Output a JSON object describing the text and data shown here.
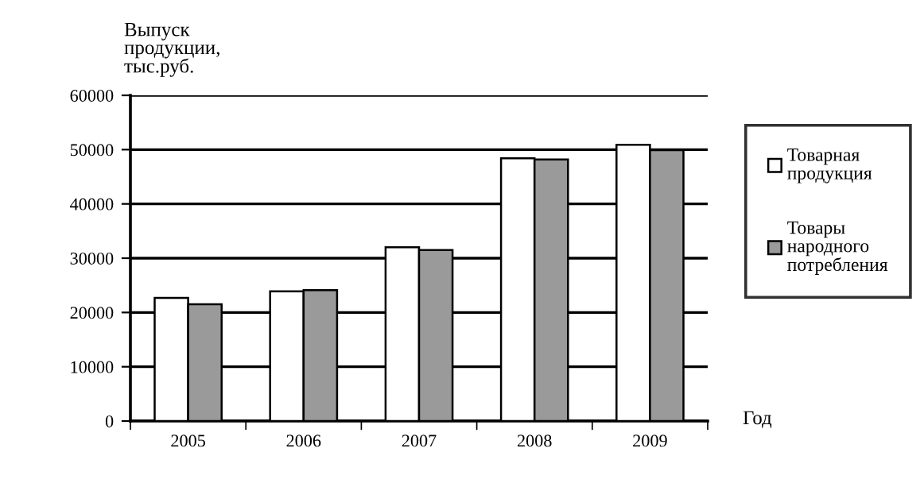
{
  "chart_data": {
    "type": "bar",
    "ylabel": "Выпуск\nпродукции,\nтыс.руб.",
    "xlabel": "Год",
    "categories": [
      "2005",
      "2006",
      "2007",
      "2008",
      "2009"
    ],
    "series": [
      {
        "name": "Товарная\nпродукция",
        "color": "#ffffff",
        "values": [
          22700,
          23900,
          32000,
          48400,
          50900
        ]
      },
      {
        "name": "Товары\nнародного\nпотребления",
        "color": "#9a9a9a",
        "values": [
          21500,
          24100,
          31500,
          48200,
          49900
        ]
      }
    ],
    "ylim": [
      0,
      60000
    ],
    "yticks": [
      0,
      10000,
      20000,
      30000,
      40000,
      50000,
      60000
    ],
    "grid": "y",
    "legend": "right"
  }
}
